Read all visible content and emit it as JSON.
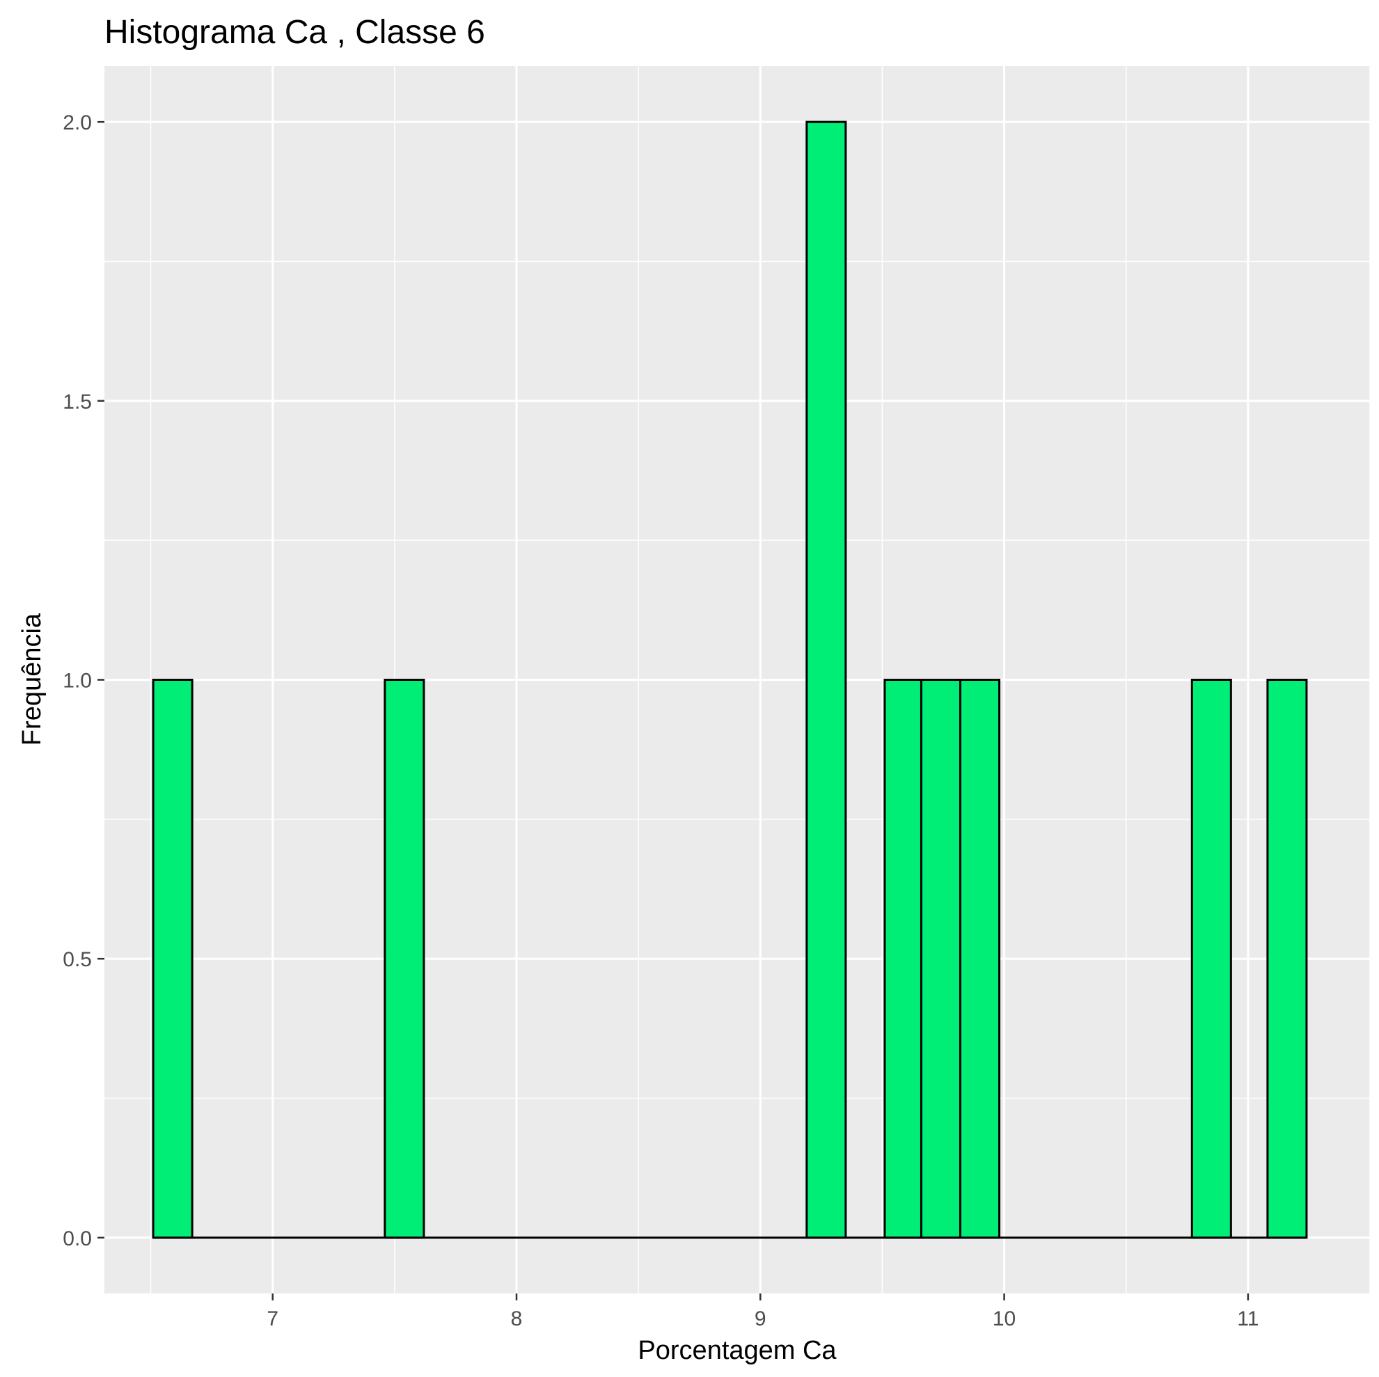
{
  "chart_data": {
    "type": "bar",
    "title": "Histograma  Ca , Classe  6",
    "xlabel": "Porcentagem Ca",
    "ylabel": "Frequência",
    "xlim": [
      6.31,
      11.5
    ],
    "ylim": [
      -0.1,
      2.1
    ],
    "x_ticks": [
      7,
      8,
      9,
      10,
      11
    ],
    "x_tick_labels": [
      "7",
      "8",
      "9",
      "10",
      "11"
    ],
    "y_ticks": [
      0,
      0.5,
      1,
      1.5,
      2
    ],
    "y_tick_labels": [
      "0.0",
      "0.5",
      "1.0",
      "1.5",
      "2.0"
    ],
    "grid": true,
    "bin_width": 0.158,
    "bin_start": 6.51,
    "bins": [
      {
        "x_min": 6.51,
        "x_max": 6.67,
        "count": 1
      },
      {
        "x_min": 7.46,
        "x_max": 7.62,
        "count": 1
      },
      {
        "x_min": 9.19,
        "x_max": 9.35,
        "count": 2
      },
      {
        "x_min": 9.51,
        "x_max": 9.66,
        "count": 1
      },
      {
        "x_min": 9.66,
        "x_max": 9.82,
        "count": 1
      },
      {
        "x_min": 9.82,
        "x_max": 9.98,
        "count": 1
      },
      {
        "x_min": 10.77,
        "x_max": 10.93,
        "count": 1
      },
      {
        "x_min": 11.08,
        "x_max": 11.24,
        "count": 1
      }
    ],
    "colors": {
      "bar_fill": "#00EE76",
      "bar_stroke": "#000000",
      "panel_bg": "#EBEBEB",
      "grid": "#FFFFFF"
    }
  }
}
